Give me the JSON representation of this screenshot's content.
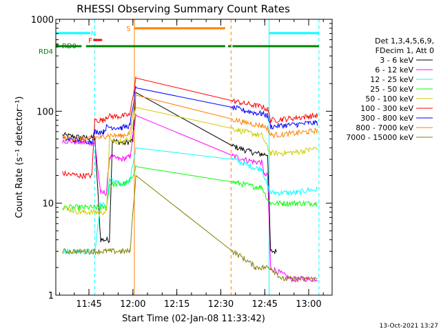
{
  "chart_data": {
    "type": "line",
    "title": "RHESSI Observing Summary Count Rates",
    "xlabel": "Start Time (02-Jan-08 11:33:42)",
    "ylabel": "Count Rate (s⁻¹ detector⁻¹)",
    "y_scale": "log",
    "ylim": [
      1,
      1000
    ],
    "xlim": [
      "11:33:42",
      "13:08:00"
    ],
    "y_ticks": [
      {
        "value": 1,
        "label": "1"
      },
      {
        "value": 10,
        "label": "10"
      },
      {
        "value": 100,
        "label": "100"
      },
      {
        "value": 1000,
        "label": "1000"
      }
    ],
    "x_ticks": [
      {
        "value": 705,
        "label": "11:45"
      },
      {
        "value": 720,
        "label": "12:00"
      },
      {
        "value": 735,
        "label": "12:15"
      },
      {
        "value": 750,
        "label": "12:30"
      },
      {
        "value": 765,
        "label": "12:45"
      },
      {
        "value": 780,
        "label": "13:00"
      }
    ],
    "legend_header": [
      "Det 1,3,4,5,6,9,",
      "FDecim 1, Att 0"
    ],
    "legend_position": "right",
    "series": [
      {
        "name": "3 - 6 keV",
        "color": "#000000",
        "points": [
          [
            696,
            55
          ],
          [
            702,
            52
          ],
          [
            707,
            51
          ],
          [
            709,
            4
          ],
          [
            712,
            4
          ],
          [
            713,
            48
          ],
          [
            717,
            45
          ],
          [
            720,
            48
          ],
          [
            721,
            160
          ],
          [
            754,
            42
          ],
          [
            758,
            38
          ],
          [
            762,
            35
          ],
          [
            764,
            34
          ],
          [
            766,
            34
          ],
          [
            767,
            3
          ],
          [
            769,
            3
          ]
        ]
      },
      {
        "name": "6 - 12 keV",
        "color": "#ff00ff",
        "points": [
          [
            696,
            48
          ],
          [
            702,
            46
          ],
          [
            707,
            45
          ],
          [
            709,
            13
          ],
          [
            711,
            13
          ],
          [
            712,
            32
          ],
          [
            716,
            30
          ],
          [
            719,
            32
          ],
          [
            721,
            90
          ],
          [
            754,
            33
          ],
          [
            758,
            30
          ],
          [
            762,
            28
          ],
          [
            764,
            28
          ],
          [
            765,
            20
          ],
          [
            766,
            20
          ],
          [
            767,
            2
          ],
          [
            774,
            1.5
          ],
          [
            778,
            1.5
          ],
          [
            783,
            1.5
          ]
        ]
      },
      {
        "name": "12 - 25 keV",
        "color": "#00ffff",
        "points": [
          [
            696,
            3
          ],
          [
            702,
            3
          ],
          [
            707,
            3
          ],
          [
            709,
            10
          ],
          [
            711,
            9
          ],
          [
            712,
            18
          ],
          [
            716,
            16
          ],
          [
            719,
            18
          ],
          [
            721,
            40
          ],
          [
            754,
            30
          ],
          [
            758,
            27
          ],
          [
            762,
            24
          ],
          [
            764,
            24
          ],
          [
            766,
            15
          ],
          [
            767,
            13
          ],
          [
            771,
            13
          ],
          [
            776,
            13
          ],
          [
            780,
            14
          ],
          [
            783,
            14
          ]
        ]
      },
      {
        "name": "25 - 50 keV",
        "color": "#00ff00",
        "points": [
          [
            696,
            9
          ],
          [
            702,
            9
          ],
          [
            707,
            9
          ],
          [
            709,
            9
          ],
          [
            711,
            9
          ],
          [
            712,
            16
          ],
          [
            716,
            16
          ],
          [
            719,
            17
          ],
          [
            721,
            25
          ],
          [
            754,
            17
          ],
          [
            758,
            16
          ],
          [
            762,
            15
          ],
          [
            764,
            15
          ],
          [
            766,
            11
          ],
          [
            767,
            10
          ],
          [
            771,
            10
          ],
          [
            776,
            10
          ],
          [
            780,
            10
          ],
          [
            783,
            10
          ]
        ]
      },
      {
        "name": "50 - 100 keV",
        "color": "#cccc00",
        "points": [
          [
            696,
            9
          ],
          [
            702,
            8
          ],
          [
            707,
            8
          ],
          [
            709,
            8
          ],
          [
            711,
            8
          ],
          [
            712,
            48
          ],
          [
            716,
            46
          ],
          [
            719,
            50
          ],
          [
            721,
            110
          ],
          [
            754,
            65
          ],
          [
            758,
            60
          ],
          [
            762,
            56
          ],
          [
            764,
            55
          ],
          [
            766,
            40
          ],
          [
            767,
            35
          ],
          [
            771,
            35
          ],
          [
            776,
            36
          ],
          [
            780,
            38
          ],
          [
            783,
            40
          ]
        ]
      },
      {
        "name": "100 - 300 keV",
        "color": "#ff0000",
        "points": [
          [
            696,
            21
          ],
          [
            702,
            20
          ],
          [
            706,
            20
          ],
          [
            707,
            80
          ],
          [
            710,
            80
          ],
          [
            711,
            88
          ],
          [
            716,
            88
          ],
          [
            719,
            92
          ],
          [
            721,
            230
          ],
          [
            754,
            130
          ],
          [
            758,
            122
          ],
          [
            762,
            115
          ],
          [
            764,
            112
          ],
          [
            766,
            105
          ],
          [
            767,
            80
          ],
          [
            771,
            82
          ],
          [
            776,
            85
          ],
          [
            780,
            88
          ],
          [
            783,
            90
          ]
        ]
      },
      {
        "name": "300 - 800 keV",
        "color": "#0000ff",
        "points": [
          [
            696,
            50
          ],
          [
            702,
            48
          ],
          [
            706,
            47
          ],
          [
            707,
            60
          ],
          [
            710,
            60
          ],
          [
            711,
            68
          ],
          [
            716,
            66
          ],
          [
            719,
            70
          ],
          [
            721,
            180
          ],
          [
            754,
            110
          ],
          [
            758,
            102
          ],
          [
            762,
            96
          ],
          [
            764,
            94
          ],
          [
            766,
            90
          ],
          [
            767,
            68
          ],
          [
            771,
            70
          ],
          [
            776,
            72
          ],
          [
            780,
            74
          ],
          [
            783,
            75
          ]
        ]
      },
      {
        "name": "800 - 7000 keV",
        "color": "#ff8000",
        "points": [
          [
            696,
            52
          ],
          [
            702,
            50
          ],
          [
            706,
            50
          ],
          [
            707,
            52
          ],
          [
            710,
            52
          ],
          [
            711,
            55
          ],
          [
            716,
            54
          ],
          [
            719,
            58
          ],
          [
            721,
            150
          ],
          [
            754,
            82
          ],
          [
            758,
            76
          ],
          [
            762,
            72
          ],
          [
            764,
            70
          ],
          [
            766,
            66
          ],
          [
            767,
            55
          ],
          [
            771,
            56
          ],
          [
            776,
            58
          ],
          [
            780,
            60
          ],
          [
            783,
            62
          ]
        ]
      },
      {
        "name": "7000 - 15000 keV",
        "color": "#808000",
        "points": [
          [
            696,
            3
          ],
          [
            702,
            3
          ],
          [
            706,
            3
          ],
          [
            707,
            3
          ],
          [
            710,
            3
          ],
          [
            711,
            3
          ],
          [
            716,
            3
          ],
          [
            719,
            3
          ],
          [
            721,
            20
          ],
          [
            754,
            3
          ],
          [
            758,
            2.5
          ],
          [
            762,
            2
          ],
          [
            764,
            2
          ],
          [
            766,
            2
          ],
          [
            767,
            2
          ],
          [
            771,
            1.5
          ],
          [
            776,
            1.5
          ],
          [
            780,
            1.5
          ],
          [
            783,
            1.5
          ]
        ]
      }
    ],
    "flag_bars": [
      {
        "label": "N",
        "color": "#00ffff",
        "segments": [
          [
            693.7,
            705.5
          ],
          [
            766.5,
            783.5
          ]
        ],
        "label_at": 706.5
      },
      {
        "label": "S",
        "color": "#ff8000",
        "segments": [
          [
            720.5,
            751.5
          ]
        ],
        "label_at": 718.5
      },
      {
        "label": "F",
        "color": "#ff0000",
        "segments": [
          [
            706.5,
            709.5
          ]
        ],
        "label_at": 705.5
      },
      {
        "label": "RD0",
        "color": "#008000",
        "segments": [
          [
            693.7,
            694.3
          ]
        ],
        "label_at": 693.7
      },
      {
        "label": "RD4",
        "color": "#008000",
        "segments": [
          [
            693.7,
            702.5
          ],
          [
            704,
            751.5
          ],
          [
            752.5,
            753.5
          ],
          [
            754,
            783.5
          ]
        ],
        "label_at": 693.7
      }
    ],
    "vertical_markers": [
      {
        "x": 707,
        "color": "#00ffff",
        "style": "dashed"
      },
      {
        "x": 720.5,
        "color": "#ff8000",
        "style": "solid"
      },
      {
        "x": 753.5,
        "color": "#ff8000",
        "style": "dashed"
      },
      {
        "x": 766.5,
        "color": "#00ffff",
        "style": "solid"
      },
      {
        "x": 783.5,
        "color": "#00ffff",
        "style": "dashed"
      }
    ],
    "timestamp": "13-Oct-2021 13:27"
  }
}
